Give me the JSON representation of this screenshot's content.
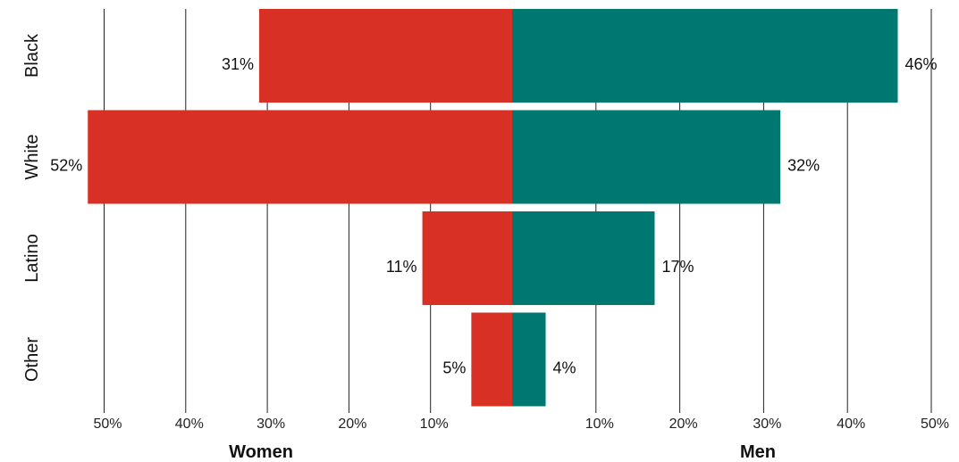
{
  "chart_data": {
    "type": "bar",
    "orientation": "horizontal-diverging",
    "categories": [
      "Black",
      "White",
      "Latino",
      "Other"
    ],
    "series": [
      {
        "name": "Women",
        "values": [
          31,
          52,
          11,
          5
        ],
        "color": "#d93025",
        "labels": [
          "31%",
          "52%",
          "11%",
          "5%"
        ]
      },
      {
        "name": "Men",
        "values": [
          46,
          32,
          17,
          4
        ],
        "color": "#007872",
        "labels": [
          "46%",
          "32%",
          "17%",
          "4%"
        ]
      }
    ],
    "xlim": [
      0,
      50
    ],
    "x_ticks": [
      10,
      20,
      30,
      40,
      50
    ],
    "x_tick_labels": [
      "10%",
      "20%",
      "30%",
      "40%",
      "50%"
    ],
    "left_label": "Women",
    "right_label": "Men",
    "grid": true
  }
}
